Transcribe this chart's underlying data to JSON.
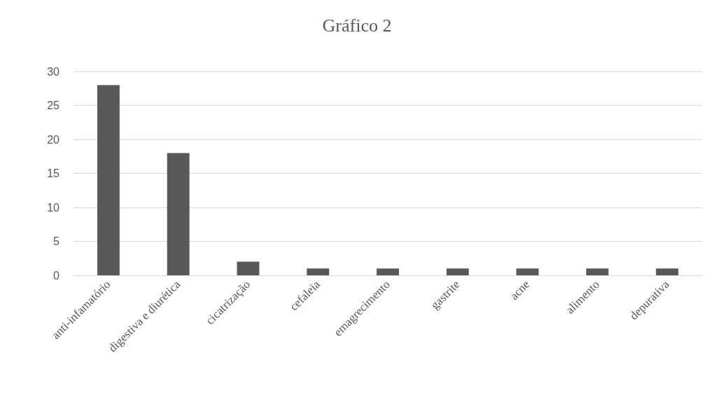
{
  "chart_data": {
    "type": "bar",
    "title": "Gráfico 2",
    "categories": [
      "anti-infamatório",
      "digestiva e diurética",
      "cicatrização",
      "cefaleia",
      "emagrecimento",
      "gastrite",
      "acne",
      "alimento",
      "depurativa"
    ],
    "values": [
      28,
      18,
      2,
      1,
      1,
      1,
      1,
      1,
      1
    ],
    "color": "#595959",
    "ylim": [
      0,
      30
    ],
    "yticks": [
      0,
      5,
      10,
      15,
      20,
      25,
      30
    ],
    "grid": "y"
  }
}
